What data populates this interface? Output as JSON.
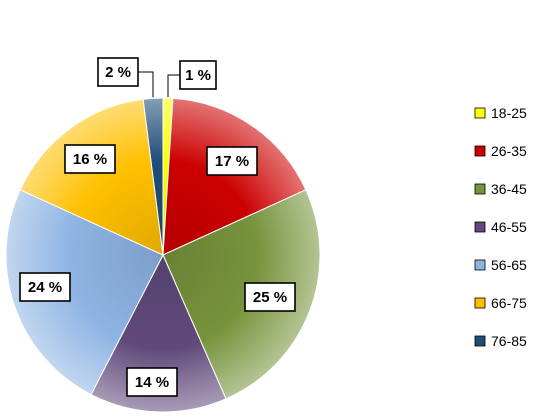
{
  "chart_data": {
    "type": "pie",
    "categories": [
      "18-25",
      "26-35",
      "36-45",
      "46-55",
      "56-65",
      "66-75",
      "76-85"
    ],
    "values": [
      1,
      17,
      25,
      14,
      24,
      16,
      2
    ],
    "value_labels": [
      "1 %",
      "17 %",
      "25 %",
      "14 %",
      "24 %",
      "16 %",
      "2 %"
    ],
    "colors": [
      "#FFFF00",
      "#CC0000",
      "#77933C",
      "#604A7B",
      "#8EB4E3",
      "#FFC000",
      "#1F4E79"
    ],
    "title": "",
    "legend": "right"
  }
}
